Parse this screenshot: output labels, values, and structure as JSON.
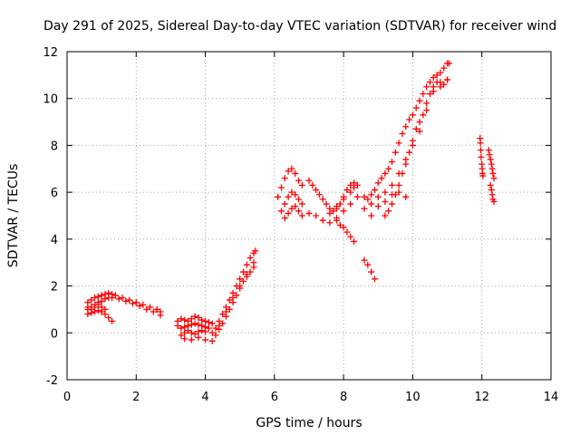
{
  "chart_data": {
    "type": "scatter",
    "title": "Day 291 of 2025, Sidereal Day-to-day VTEC variation (SDTVAR) for receiver wind",
    "xlabel": "GPS time / hours",
    "ylabel": "SDTVAR / TECUs",
    "xlim": [
      0,
      14
    ],
    "ylim": [
      -2,
      12
    ],
    "xticks": [
      0,
      2,
      4,
      6,
      8,
      10,
      12,
      14
    ],
    "yticks": [
      -2,
      0,
      2,
      4,
      6,
      8,
      10,
      12
    ],
    "xtick_labels": [
      "0",
      "2",
      "4",
      "6",
      "8",
      "10",
      "12",
      "14"
    ],
    "ytick_labels": [
      "-2",
      "0",
      "2",
      "4",
      "6",
      "8",
      "10",
      "12"
    ],
    "grid": true,
    "legend": "none",
    "marker": "plus",
    "color": "#ff0000",
    "series": [
      {
        "x": [
          0.6,
          0.7,
          0.8,
          0.9,
          1.0,
          1.1,
          1.2,
          1.3,
          1.4,
          1.6,
          1.8,
          2.0,
          2.2,
          2.4,
          2.6,
          2.7,
          0.6,
          0.7,
          0.8,
          0.9,
          1.0,
          1.1,
          1.2,
          1.3,
          1.5,
          1.7,
          1.9,
          2.1,
          2.3,
          2.5,
          2.7,
          0.6,
          0.7,
          0.8,
          0.9,
          1.0,
          1.1,
          1.2,
          1.3,
          0.6,
          0.7,
          0.8,
          0.9,
          1.0,
          1.1
        ],
        "y": [
          1.3,
          1.4,
          1.5,
          1.55,
          1.6,
          1.65,
          1.7,
          1.65,
          1.6,
          1.5,
          1.4,
          1.3,
          1.2,
          1.1,
          1.0,
          0.9,
          1.0,
          1.1,
          1.2,
          1.3,
          1.35,
          1.45,
          1.5,
          1.5,
          1.45,
          1.35,
          1.25,
          1.15,
          1.0,
          0.9,
          0.75,
          0.8,
          0.85,
          0.9,
          0.95,
          0.9,
          0.8,
          0.65,
          0.5,
          1.1,
          1.0,
          1.1,
          1.2,
          1.1,
          1.0
        ]
      },
      {
        "x": [
          3.2,
          3.3,
          3.4,
          3.5,
          3.6,
          3.7,
          3.8,
          3.9,
          4.0,
          4.1,
          4.2,
          3.2,
          3.3,
          3.4,
          3.5,
          3.6,
          3.7,
          3.8,
          3.9,
          4.0,
          4.1,
          3.3,
          3.4,
          3.5,
          3.6,
          3.7,
          3.8,
          3.9,
          4.0,
          3.4,
          3.6,
          3.8,
          4.0,
          4.2
        ],
        "y": [
          0.5,
          0.6,
          0.55,
          0.5,
          0.6,
          0.7,
          0.65,
          0.55,
          0.5,
          0.45,
          0.4,
          0.3,
          0.2,
          0.25,
          0.3,
          0.35,
          0.4,
          0.35,
          0.3,
          0.25,
          0.2,
          -0.1,
          0.0,
          0.1,
          0.0,
          -0.05,
          0.05,
          0.1,
          0.05,
          -0.25,
          -0.3,
          -0.2,
          -0.3,
          -0.35
        ]
      },
      {
        "x": [
          4.2,
          4.3,
          4.4,
          4.5,
          4.6,
          4.7,
          4.8,
          4.9,
          5.0,
          5.1,
          5.2,
          5.3,
          5.4,
          5.45,
          4.3,
          4.4,
          4.5,
          4.6,
          4.7,
          4.8,
          4.9,
          5.0,
          5.1,
          5.2,
          5.3,
          5.4,
          4.4,
          4.6,
          4.8,
          5.0,
          5.2,
          5.4
        ],
        "y": [
          0.0,
          0.2,
          0.5,
          0.8,
          1.1,
          1.4,
          1.7,
          2.0,
          2.3,
          2.6,
          2.9,
          3.2,
          3.4,
          3.5,
          -0.1,
          0.15,
          0.4,
          0.7,
          1.0,
          1.3,
          1.6,
          1.9,
          2.2,
          2.4,
          2.6,
          2.8,
          0.3,
          0.9,
          1.5,
          2.0,
          2.5,
          3.0
        ]
      },
      {
        "x": [
          6.1,
          6.2,
          6.3,
          6.4,
          6.5,
          6.6,
          6.7,
          6.8,
          6.2,
          6.3,
          6.4,
          6.5,
          6.6,
          6.7,
          6.8,
          6.3,
          6.4,
          6.5,
          6.6,
          6.7,
          6.8
        ],
        "y": [
          5.8,
          6.2,
          6.6,
          6.9,
          7.0,
          6.8,
          6.5,
          6.3,
          5.2,
          5.5,
          5.8,
          6.0,
          5.9,
          5.7,
          5.5,
          4.9,
          5.1,
          5.3,
          5.4,
          5.2,
          5.0
        ]
      },
      {
        "x": [
          7.0,
          7.1,
          7.2,
          7.3,
          7.4,
          7.5,
          7.6,
          7.7,
          7.8,
          7.9,
          8.0,
          8.1,
          8.2,
          8.3,
          7.0,
          7.2,
          7.4,
          7.6,
          7.8,
          8.0,
          8.2,
          8.4,
          7.6,
          7.8,
          8.0,
          8.2,
          8.3,
          8.4,
          7.8,
          7.9,
          8.0,
          8.1,
          8.2,
          8.3,
          8.6,
          8.7,
          8.8,
          8.9
        ],
        "y": [
          6.5,
          6.3,
          6.1,
          5.9,
          5.7,
          5.5,
          5.3,
          5.2,
          5.3,
          5.5,
          5.8,
          6.1,
          6.3,
          6.4,
          5.1,
          5.0,
          4.8,
          4.7,
          4.9,
          5.2,
          5.5,
          5.8,
          5.1,
          5.4,
          5.7,
          6.0,
          6.2,
          6.3,
          4.8,
          4.6,
          4.5,
          4.3,
          4.1,
          3.9,
          3.1,
          2.9,
          2.6,
          2.3
        ]
      },
      {
        "x": [
          8.6,
          8.7,
          8.8,
          8.9,
          9.0,
          9.1,
          9.2,
          9.3,
          9.4,
          9.5,
          9.6,
          9.7,
          9.8,
          9.9,
          10.0,
          10.1,
          10.2,
          10.3,
          10.4,
          10.5,
          10.6,
          10.7,
          10.8,
          10.9,
          11.0,
          11.05,
          8.6,
          8.8,
          9.0,
          9.2,
          9.4,
          9.6,
          9.8,
          10.0,
          10.2,
          10.4,
          10.6,
          10.8,
          11.0,
          9.2,
          9.3,
          9.4,
          9.5,
          9.6,
          9.7,
          9.8,
          9.9,
          10.0,
          10.1,
          10.2,
          10.3,
          10.4,
          10.5,
          10.6,
          10.7,
          10.8,
          10.9,
          11.0,
          8.8,
          9.0,
          9.2,
          9.4,
          9.6,
          9.8
        ],
        "y": [
          5.8,
          5.7,
          5.9,
          6.1,
          6.4,
          6.6,
          6.8,
          7.0,
          7.3,
          7.7,
          8.1,
          8.5,
          8.8,
          9.1,
          9.3,
          9.6,
          9.9,
          10.2,
          10.5,
          10.7,
          10.9,
          11.0,
          11.1,
          11.3,
          11.5,
          11.5,
          5.3,
          5.5,
          5.8,
          6.0,
          6.3,
          6.8,
          7.4,
          8.0,
          8.6,
          9.5,
          10.3,
          10.7,
          10.8,
          5.0,
          5.2,
          5.5,
          5.9,
          6.3,
          6.8,
          7.2,
          7.7,
          8.2,
          8.7,
          9.0,
          9.3,
          9.8,
          10.2,
          10.5,
          10.7,
          10.5,
          10.6,
          10.8,
          5.0,
          5.4,
          5.6,
          5.9,
          6.0,
          5.8
        ]
      },
      {
        "x": [
          11.95,
          11.96,
          11.97,
          11.98,
          12.0,
          12.01,
          12.02,
          12.03,
          12.2,
          12.22,
          12.25,
          12.28,
          12.3,
          12.32,
          12.35,
          12.25,
          12.28,
          12.3,
          12.32,
          12.35
        ],
        "y": [
          8.3,
          8.1,
          7.8,
          7.5,
          7.2,
          7.0,
          6.8,
          6.7,
          7.8,
          7.6,
          7.4,
          7.2,
          7.0,
          6.8,
          6.6,
          6.3,
          6.1,
          5.9,
          5.7,
          5.6
        ]
      }
    ]
  }
}
